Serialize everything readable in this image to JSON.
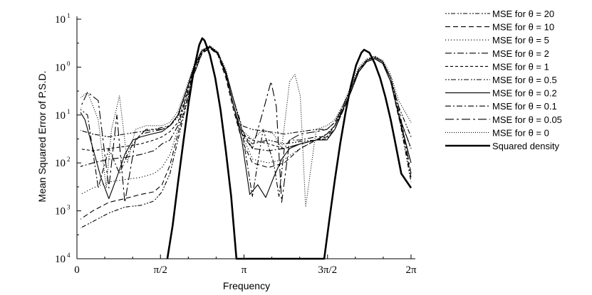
{
  "chart_data": {
    "type": "line",
    "xlabel": "Frequency",
    "ylabel": "Mean Squared Error of P.S.D.",
    "xlim": [
      0,
      6.2832
    ],
    "ylim_log10": [
      -4,
      1
    ],
    "yscale": "log",
    "x_ticks": [
      {
        "value": 0,
        "label": "0"
      },
      {
        "value": 1.5708,
        "label": "π/2"
      },
      {
        "value": 3.1416,
        "label": "π"
      },
      {
        "value": 4.7124,
        "label": "3π/2"
      },
      {
        "value": 6.2832,
        "label": "2π"
      }
    ],
    "y_ticks": [
      {
        "value": 10,
        "base": "10",
        "exp": "1"
      },
      {
        "value": 1,
        "base": "10",
        "exp": "0"
      },
      {
        "value": 0.1,
        "base": "10",
        "exp": "1"
      },
      {
        "value": 0.01,
        "base": "10",
        "exp": "2"
      },
      {
        "value": 0.001,
        "base": "10",
        "exp": "3"
      },
      {
        "value": 0.0001,
        "base": "10",
        "exp": "4"
      }
    ],
    "grid": false,
    "legend_position": "right",
    "series": [
      {
        "name": "MSE for  θ = 20",
        "dash": "2,2,2,2,6,3",
        "width": 1.1,
        "x": [
          0,
          0.3,
          0.6,
          0.9,
          1.2,
          1.45,
          1.6,
          1.75,
          1.9,
          2.05,
          2.2,
          2.35,
          2.5,
          2.65,
          2.8,
          2.95,
          3.1,
          3.3,
          3.6,
          3.9,
          4.2,
          4.5,
          4.7,
          4.85,
          5.0,
          5.15,
          5.3,
          5.45,
          5.6,
          5.75,
          5.9,
          6.05,
          6.2832
        ],
        "y": [
          0.0004,
          0.0006,
          0.0009,
          0.0012,
          0.0013,
          0.0016,
          0.0025,
          0.006,
          0.03,
          0.15,
          0.7,
          1.9,
          2.6,
          1.9,
          0.7,
          0.15,
          0.04,
          0.025,
          0.03,
          0.025,
          0.028,
          0.03,
          0.032,
          0.05,
          0.12,
          0.3,
          0.8,
          1.4,
          1.7,
          1.3,
          0.5,
          0.1,
          0.004
        ]
      },
      {
        "name": "MSE for  θ = 10",
        "dash": "7,4",
        "width": 1.1,
        "x": [
          0,
          0.3,
          0.6,
          0.9,
          1.2,
          1.45,
          1.6,
          1.75,
          1.9,
          2.05,
          2.2,
          2.35,
          2.5,
          2.65,
          2.8,
          2.95,
          3.1,
          3.3,
          3.6,
          3.9,
          4.2,
          4.5,
          4.7,
          4.85,
          5.0,
          5.15,
          5.3,
          5.45,
          5.6,
          5.75,
          5.9,
          6.05,
          6.2832
        ],
        "y": [
          0.0006,
          0.001,
          0.0015,
          0.0018,
          0.0022,
          0.0025,
          0.0035,
          0.009,
          0.04,
          0.17,
          0.7,
          1.9,
          2.5,
          1.8,
          0.6,
          0.12,
          0.03,
          0.01,
          0.008,
          0.01,
          0.02,
          0.03,
          0.035,
          0.05,
          0.12,
          0.3,
          0.8,
          1.3,
          1.5,
          1.2,
          0.5,
          0.09,
          0.01
        ]
      },
      {
        "name": "MSE for  θ = 5",
        "dash": "1.2,2.8",
        "width": 1.1,
        "x": [
          0,
          0.3,
          0.6,
          0.9,
          1.2,
          1.45,
          1.6,
          1.75,
          1.9,
          2.05,
          2.2,
          2.35,
          2.5,
          2.65,
          2.8,
          2.95,
          3.1,
          3.3,
          3.6,
          3.9,
          4.2,
          4.5,
          4.7,
          4.85,
          5.0,
          5.15,
          5.3,
          5.45,
          5.6,
          5.75,
          5.9,
          6.05,
          6.2832
        ],
        "y": [
          0.002,
          0.003,
          0.004,
          0.0045,
          0.005,
          0.006,
          0.008,
          0.015,
          0.05,
          0.2,
          0.8,
          2.0,
          2.6,
          1.9,
          0.7,
          0.15,
          0.04,
          0.012,
          0.01,
          0.012,
          0.02,
          0.03,
          0.04,
          0.06,
          0.13,
          0.3,
          0.8,
          1.3,
          1.5,
          1.2,
          0.5,
          0.1,
          0.02
        ]
      },
      {
        "name": "MSE for  θ = 2",
        "dash": "9,3,2,3",
        "width": 1.1,
        "x": [
          0,
          0.3,
          0.6,
          0.9,
          1.2,
          1.45,
          1.6,
          1.75,
          1.9,
          2.05,
          2.2,
          2.35,
          2.5,
          2.65,
          2.8,
          2.95,
          3.1,
          3.3,
          3.6,
          3.9,
          4.2,
          4.5,
          4.7,
          4.85,
          5.0,
          5.15,
          5.3,
          5.45,
          5.6,
          5.75,
          5.9,
          6.05,
          6.2832
        ],
        "y": [
          0.008,
          0.01,
          0.012,
          0.013,
          0.015,
          0.018,
          0.025,
          0.03,
          0.06,
          0.22,
          0.8,
          2.0,
          2.5,
          1.9,
          0.7,
          0.15,
          0.04,
          0.02,
          0.018,
          0.02,
          0.025,
          0.03,
          0.04,
          0.06,
          0.13,
          0.3,
          0.8,
          1.3,
          1.5,
          1.2,
          0.5,
          0.1,
          0.02
        ]
      },
      {
        "name": "MSE for  θ = 1",
        "dash": "4,3",
        "width": 1.1,
        "x": [
          0,
          0.3,
          0.6,
          0.9,
          1.2,
          1.45,
          1.6,
          1.75,
          1.9,
          2.05,
          2.2,
          2.35,
          2.5,
          2.65,
          2.8,
          2.95,
          3.1,
          3.3,
          3.6,
          3.9,
          4.2,
          4.5,
          4.7,
          4.85,
          5.0,
          5.15,
          5.3,
          5.45,
          5.6,
          5.75,
          5.9,
          6.05,
          6.2832
        ],
        "y": [
          0.02,
          0.018,
          0.02,
          0.022,
          0.025,
          0.03,
          0.035,
          0.045,
          0.07,
          0.25,
          0.9,
          2.1,
          2.6,
          1.9,
          0.7,
          0.15,
          0.04,
          0.03,
          0.025,
          0.02,
          0.025,
          0.03,
          0.04,
          0.06,
          0.13,
          0.3,
          0.8,
          1.3,
          1.5,
          1.2,
          0.5,
          0.1,
          0.02
        ]
      },
      {
        "name": "MSE for  θ = 0.5",
        "dash": "2,2,2,2,7,3",
        "width": 1.1,
        "x": [
          0,
          0.3,
          0.6,
          0.9,
          1.2,
          1.45,
          1.6,
          1.75,
          1.9,
          2.05,
          2.2,
          2.35,
          2.5,
          2.65,
          2.8,
          2.95,
          3.1,
          3.3,
          3.6,
          3.9,
          4.2,
          4.5,
          4.7,
          4.85,
          5.0,
          5.15,
          5.3,
          5.45,
          5.6,
          5.75,
          5.9,
          6.05,
          6.2832
        ],
        "y": [
          0.05,
          0.04,
          0.035,
          0.04,
          0.045,
          0.05,
          0.055,
          0.06,
          0.09,
          0.3,
          1.0,
          2.2,
          2.7,
          2.0,
          0.8,
          0.2,
          0.06,
          0.05,
          0.045,
          0.04,
          0.045,
          0.05,
          0.05,
          0.07,
          0.15,
          0.35,
          0.9,
          1.4,
          1.6,
          1.3,
          0.6,
          0.15,
          0.035
        ]
      },
      {
        "name": "MSE for  θ = 0.2",
        "dash": "",
        "width": 1.1,
        "x": [
          0,
          0.15,
          0.3,
          0.45,
          0.6,
          0.75,
          0.9,
          1.05,
          1.2,
          1.4,
          1.6,
          1.75,
          1.9,
          2.05,
          2.2,
          2.35,
          2.5,
          2.65,
          2.8,
          2.95,
          3.1,
          3.25,
          3.4,
          3.55,
          3.7,
          3.85,
          4.0,
          4.2,
          4.5,
          4.7,
          4.85,
          5.0,
          5.15,
          5.3,
          5.45,
          5.6,
          5.75,
          5.9,
          6.05,
          6.2832
        ],
        "y": [
          0.15,
          0.08,
          0.02,
          0.005,
          0.0018,
          0.005,
          0.015,
          0.03,
          0.035,
          0.04,
          0.045,
          0.06,
          0.1,
          0.3,
          1.0,
          2.2,
          2.6,
          2.0,
          0.7,
          0.15,
          0.03,
          0.0022,
          0.0035,
          0.0019,
          0.005,
          0.012,
          0.02,
          0.025,
          0.03,
          0.03,
          0.05,
          0.13,
          0.3,
          0.8,
          1.3,
          1.5,
          1.2,
          0.5,
          0.1,
          0.01
        ]
      },
      {
        "name": "MSE for  θ = 0.1",
        "dash": "8,3,2,3",
        "width": 1.1,
        "x": [
          0,
          0.2,
          0.4,
          0.6,
          0.8,
          1.0,
          1.2,
          1.4,
          1.6,
          1.75,
          1.9,
          2.05,
          2.2,
          2.35,
          2.5,
          2.65,
          2.8,
          2.95,
          3.1,
          3.3,
          3.5,
          3.7,
          3.8,
          3.9,
          4.0,
          4.2,
          4.5,
          4.7,
          4.85,
          5.0,
          5.15,
          5.3,
          5.45,
          5.6,
          5.75,
          5.9,
          6.05,
          6.2832
        ],
        "y": [
          0.15,
          0.1,
          0.003,
          0.02,
          0.006,
          0.02,
          0.04,
          0.045,
          0.05,
          0.06,
          0.1,
          0.3,
          1.0,
          2.2,
          2.7,
          2.0,
          0.8,
          0.2,
          0.05,
          0.002,
          0.05,
          0.01,
          0.002,
          0.02,
          0.03,
          0.03,
          0.035,
          0.035,
          0.06,
          0.15,
          0.35,
          0.9,
          1.4,
          1.6,
          1.3,
          0.6,
          0.12,
          0.005
        ]
      },
      {
        "name": "MSE for  θ = 0.05",
        "dash": "12,4,3,4",
        "width": 1.1,
        "x": [
          0,
          0.2,
          0.4,
          0.6,
          0.75,
          0.9,
          1.1,
          1.3,
          1.5,
          1.6,
          1.75,
          1.9,
          2.05,
          2.2,
          2.35,
          2.5,
          2.65,
          2.8,
          2.95,
          3.1,
          3.3,
          3.5,
          3.65,
          3.75,
          3.85,
          4.0,
          4.2,
          4.5,
          4.7,
          4.85,
          5.0,
          5.15,
          5.3,
          5.45,
          5.6,
          5.75,
          5.9,
          6.05,
          6.2832
        ],
        "y": [
          0.1,
          0.3,
          0.2,
          0.003,
          0.1,
          0.0015,
          0.03,
          0.05,
          0.05,
          0.05,
          0.06,
          0.1,
          0.3,
          1.0,
          2.2,
          2.7,
          2.0,
          0.8,
          0.2,
          0.05,
          0.02,
          0.12,
          0.5,
          0.15,
          0.0015,
          0.03,
          0.04,
          0.045,
          0.05,
          0.07,
          0.15,
          0.35,
          0.9,
          1.4,
          1.6,
          1.3,
          0.6,
          0.15,
          0.006
        ]
      },
      {
        "name": "MSE for  θ = 0",
        "dash": "1,2",
        "width": 1.1,
        "x": [
          0,
          0.2,
          0.4,
          0.55,
          0.65,
          0.8,
          0.95,
          1.1,
          1.3,
          1.5,
          1.6,
          1.75,
          1.9,
          2.05,
          2.2,
          2.35,
          2.5,
          2.65,
          2.8,
          2.95,
          3.1,
          3.3,
          3.5,
          3.7,
          3.85,
          4.0,
          4.1,
          4.2,
          4.3,
          4.5,
          4.7,
          4.85,
          5.0,
          5.15,
          5.3,
          5.45,
          5.6,
          5.75,
          5.9,
          6.05,
          6.2832
        ],
        "y": [
          0.2,
          0.3,
          0.08,
          0.003,
          0.05,
          0.25,
          0.01,
          0.05,
          0.06,
          0.06,
          0.06,
          0.07,
          0.12,
          0.35,
          1.1,
          2.3,
          2.8,
          2.1,
          0.9,
          0.2,
          0.05,
          0.03,
          0.05,
          0.04,
          0.02,
          0.5,
          0.7,
          0.25,
          0.0012,
          0.05,
          0.06,
          0.08,
          0.16,
          0.4,
          1.0,
          1.5,
          1.7,
          1.4,
          0.7,
          0.2,
          0.07
        ]
      },
      {
        "name": "Squared density",
        "dash": "",
        "width": 2.6,
        "x": [
          1.7,
          1.8,
          1.9,
          2.0,
          2.1,
          2.2,
          2.3,
          2.356,
          2.4,
          2.5,
          2.6,
          2.7,
          2.8,
          2.9,
          3.0,
          4.65,
          4.75,
          4.85,
          4.95,
          5.05,
          5.15,
          5.25,
          5.35,
          5.4,
          5.5,
          5.6,
          5.7,
          5.8,
          5.9,
          6.0,
          6.1,
          6.2832
        ],
        "y": [
          0.0001,
          0.0005,
          0.0038,
          0.027,
          0.18,
          0.9,
          2.9,
          4.0,
          3.6,
          1.8,
          0.6,
          0.13,
          0.018,
          0.002,
          0.0001,
          0.0001,
          0.0007,
          0.0044,
          0.025,
          0.11,
          0.4,
          1.1,
          2.0,
          2.3,
          2.0,
          1.2,
          0.6,
          0.24,
          0.08,
          0.022,
          0.006,
          0.003
        ]
      }
    ]
  }
}
